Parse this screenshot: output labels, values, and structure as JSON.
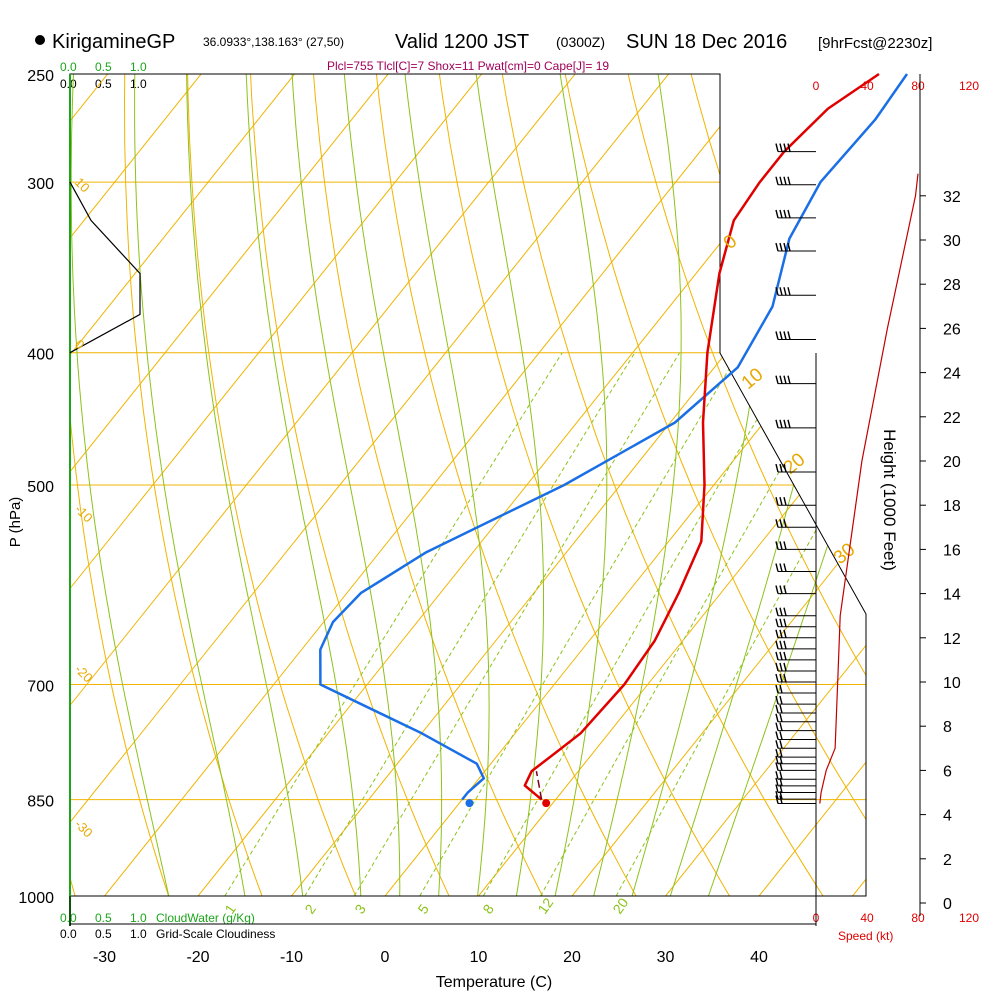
{
  "header": {
    "station": "KirigamineGP",
    "coords": "36.0933°,138.163° (27,50)",
    "valid": "Valid 1200 JST",
    "zulu": "(0300Z)",
    "date": "SUN 18 Dec 2016",
    "forecast": "[9hrFcst@2230z]",
    "indices": "Plcl=755 Tlcl[C]=7 Shox=11 Pwat[cm]=0 Cape[J]= 19"
  },
  "legend": {
    "cloudwater_label": "CloudWater (g/Kg)",
    "cloudiness_label": "Grid-Scale Cloudiness",
    "cw_ticks": [
      "0.0",
      "0.5",
      "1.0"
    ],
    "cl_ticks": [
      "0.0",
      "0.5",
      "1.0"
    ],
    "speed_label": "Speed (kt)",
    "speed_ticks": [
      "0",
      "40",
      "80",
      "120"
    ]
  },
  "colors": {
    "temperature": "#e00000",
    "dewpoint": "#1a6fe6",
    "isotherms": "#f0b400",
    "dry_adiabats": "#f0b400",
    "moist_adiabats": "#8cc21a",
    "mixing_ratio": "#8cc21a",
    "cloudwater": "#1aa51a",
    "speed": "#c00000"
  },
  "chart_data": {
    "type": "line",
    "title": "",
    "xlabel": "Temperature (C)",
    "ylabel": "P (hPa)",
    "y2label": "Height (1000 Feet)",
    "x_ticks": [
      "-30",
      "-20",
      "-10",
      "0",
      "10",
      "20",
      "30",
      "40"
    ],
    "p_ticks": [
      "250",
      "300",
      "400",
      "500",
      "700",
      "850",
      "1000"
    ],
    "height_ticks": [
      "0",
      "2",
      "4",
      "6",
      "8",
      "10",
      "12",
      "14",
      "16",
      "18",
      "20",
      "22",
      "24",
      "26",
      "28",
      "30",
      "32"
    ],
    "isotherm_labels": [
      "10",
      "0",
      "-10",
      "-20",
      "-30"
    ],
    "theta_labels": [
      "0",
      "10",
      "20",
      "30"
    ],
    "mixing_ratio_labels": [
      "1",
      "2",
      "3",
      "5",
      "8",
      "12",
      "20"
    ],
    "series": [
      {
        "name": "Temperature",
        "points": [
          {
            "p": 850,
            "t": 8.5
          },
          {
            "p": 830,
            "t": 5.5
          },
          {
            "p": 810,
            "t": 5
          },
          {
            "p": 785,
            "t": 6
          },
          {
            "p": 760,
            "t": 7
          },
          {
            "p": 700,
            "t": 7.5
          },
          {
            "p": 650,
            "t": 7
          },
          {
            "p": 600,
            "t": 5.5
          },
          {
            "p": 550,
            "t": 3.5
          },
          {
            "p": 500,
            "t": -1
          },
          {
            "p": 450,
            "t": -6.5
          },
          {
            "p": 400,
            "t": -12
          },
          {
            "p": 350,
            "t": -17.5
          },
          {
            "p": 320,
            "t": -20.5
          },
          {
            "p": 300,
            "t": -21
          },
          {
            "p": 285,
            "t": -21
          },
          {
            "p": 265,
            "t": -20
          },
          {
            "p": 250,
            "t": -17.5
          }
        ]
      },
      {
        "name": "Dewpoint",
        "points": [
          {
            "p": 850,
            "t": 0
          },
          {
            "p": 840,
            "t": 0
          },
          {
            "p": 820,
            "t": 0.5
          },
          {
            "p": 800,
            "t": -1.5
          },
          {
            "p": 760,
            "t": -10
          },
          {
            "p": 700,
            "t": -25
          },
          {
            "p": 660,
            "t": -28
          },
          {
            "p": 630,
            "t": -29
          },
          {
            "p": 600,
            "t": -28.5
          },
          {
            "p": 560,
            "t": -25
          },
          {
            "p": 500,
            "t": -16
          },
          {
            "p": 450,
            "t": -9.5
          },
          {
            "p": 410,
            "t": -7.5
          },
          {
            "p": 370,
            "t": -9
          },
          {
            "p": 330,
            "t": -13
          },
          {
            "p": 300,
            "t": -14.5
          },
          {
            "p": 270,
            "t": -14
          },
          {
            "p": 250,
            "t": -14.5
          }
        ]
      },
      {
        "name": "Parcel",
        "points": [
          {
            "p": 850,
            "t": 8.5
          },
          {
            "p": 810,
            "t": 5.5
          }
        ]
      }
    ],
    "surface": {
      "temp": 9.5,
      "dewpoint": 1.3
    },
    "cloud_fraction_profile": [
      {
        "p": 300,
        "v": 0.0
      },
      {
        "p": 320,
        "v": 0.3
      },
      {
        "p": 350,
        "v": 1.0
      },
      {
        "p": 375,
        "v": 1.0
      },
      {
        "p": 400,
        "v": 0.0
      }
    ],
    "wind_speed_profile_kt": [
      {
        "h": 4.5,
        "kt": 3
      },
      {
        "h": 5,
        "kt": 4
      },
      {
        "h": 6,
        "kt": 8
      },
      {
        "h": 7,
        "kt": 15
      },
      {
        "h": 10,
        "kt": 17
      },
      {
        "h": 13,
        "kt": 19
      },
      {
        "h": 20,
        "kt": 36
      },
      {
        "h": 26,
        "kt": 56
      },
      {
        "h": 32,
        "kt": 78
      },
      {
        "h": 33,
        "kt": 80
      }
    ],
    "wind_barb_heights_kft": [
      4.5,
      4.7,
      5,
      5.3,
      5.6,
      6,
      6.3,
      6.6,
      7,
      7.4,
      7.8,
      8.2,
      8.6,
      9,
      9.5,
      10,
      10.5,
      11,
      11.5,
      12,
      12.5,
      13,
      14,
      15,
      16,
      17,
      18,
      19.5,
      21.5,
      23.5,
      25.5,
      27.5,
      29.5,
      31,
      32.5,
      34
    ]
  }
}
